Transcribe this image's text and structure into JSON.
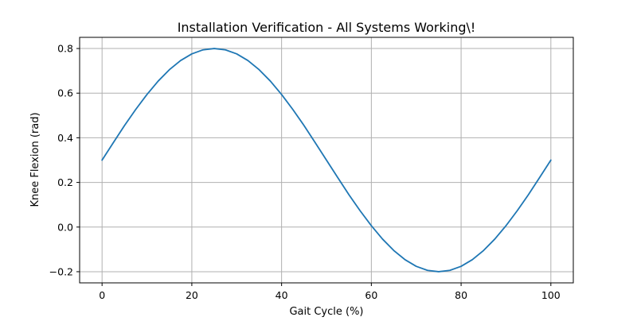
{
  "chart_data": {
    "type": "line",
    "title": "Installation Verification - All Systems Working\\!",
    "xlabel": "Gait Cycle (%)",
    "ylabel": "Knee Flexion (rad)",
    "xlim": [
      -5,
      105
    ],
    "ylim": [
      -0.25,
      0.85
    ],
    "xticks": [
      0,
      20,
      40,
      60,
      80,
      100
    ],
    "xtick_labels": [
      "0",
      "20",
      "40",
      "60",
      "80",
      "100"
    ],
    "yticks": [
      -0.2,
      0.0,
      0.2,
      0.4,
      0.6,
      0.8
    ],
    "ytick_labels": [
      "−0.2",
      "0.0",
      "0.2",
      "0.4",
      "0.6",
      "0.8"
    ],
    "grid": true,
    "series": [
      {
        "color": "#1f77b4",
        "x": [
          0,
          2.5,
          5,
          7.5,
          10,
          12.5,
          15,
          17.5,
          20,
          22.5,
          25,
          27.5,
          30,
          32.5,
          35,
          37.5,
          40,
          42.5,
          45,
          47.5,
          50,
          52.5,
          55,
          57.5,
          60,
          62.5,
          65,
          67.5,
          70,
          72.5,
          75,
          77.5,
          80,
          82.5,
          85,
          87.5,
          90,
          92.5,
          95,
          97.5,
          100
        ],
        "y": [
          0.3,
          0.378,
          0.455,
          0.527,
          0.594,
          0.654,
          0.705,
          0.746,
          0.776,
          0.794,
          0.8,
          0.794,
          0.776,
          0.746,
          0.705,
          0.654,
          0.594,
          0.527,
          0.455,
          0.378,
          0.3,
          0.222,
          0.145,
          0.073,
          0.006,
          -0.054,
          -0.105,
          -0.146,
          -0.176,
          -0.194,
          -0.2,
          -0.194,
          -0.176,
          -0.146,
          -0.105,
          -0.054,
          0.006,
          0.073,
          0.145,
          0.222,
          0.3
        ]
      }
    ]
  }
}
